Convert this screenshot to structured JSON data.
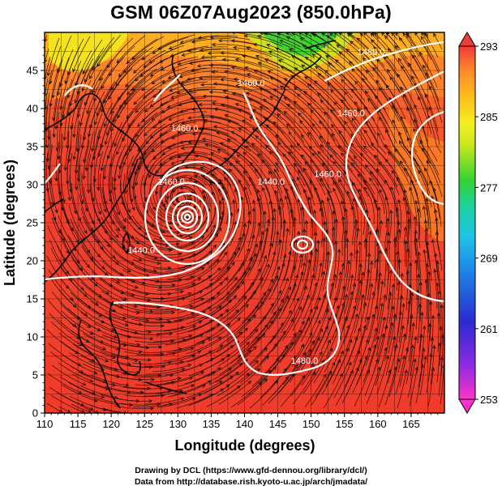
{
  "title": "GSM 06Z07Aug2023 (850.0hPa)",
  "map": {
    "xlabel": "Longitude (degrees)",
    "ylabel": "Latitude  (degrees)",
    "lon_range": [
      110,
      170
    ],
    "lat_range": [
      0,
      50
    ],
    "lon_ticks": [
      110,
      115,
      120,
      125,
      130,
      135,
      140,
      145,
      150,
      155,
      160,
      165
    ],
    "lat_ticks": [
      0,
      5,
      10,
      15,
      20,
      25,
      30,
      35,
      40,
      45
    ],
    "typhoon_center": {
      "lon": 130.5,
      "lat": 28.2
    },
    "contour_labels": [
      {
        "text": "1440.0",
        "lon": 124.5,
        "lat": 21.0
      },
      {
        "text": "1480.0",
        "lon": 149.0,
        "lat": 6.5
      },
      {
        "text": "1480.0",
        "lon": 159.0,
        "lat": 47.0
      },
      {
        "text": "1460.0",
        "lon": 156.0,
        "lat": 39.0
      },
      {
        "text": "1460.0",
        "lon": 152.5,
        "lat": 31.0
      },
      {
        "text": "1460.0",
        "lon": 129.0,
        "lat": 30.0
      },
      {
        "text": "1460.0",
        "lon": 141.0,
        "lat": 43.0
      },
      {
        "text": "1460.0",
        "lon": 131.0,
        "lat": 37.0
      },
      {
        "text": "1440.0",
        "lon": 144.0,
        "lat": 30.0
      }
    ]
  },
  "colorbar": {
    "vmin": 253,
    "vmax": 293,
    "tick_values": [
      253,
      261,
      269,
      277,
      285,
      293
    ],
    "colors": {
      "magenta": "#ff33cc",
      "blue": "#2a2ad0",
      "cyan": "#1ec3e8",
      "green": "#33d233",
      "yellow": "#f3f01e",
      "orange": "#ff9b1e",
      "red": "#f23b3b"
    }
  },
  "credits": {
    "line1": "Drawing by DCL (https://www.gfd-dennou.org/library/dcl/)",
    "line2": "Data from http://database.rish.kyoto-u.ac.jp/arch/jmadata/"
  }
}
